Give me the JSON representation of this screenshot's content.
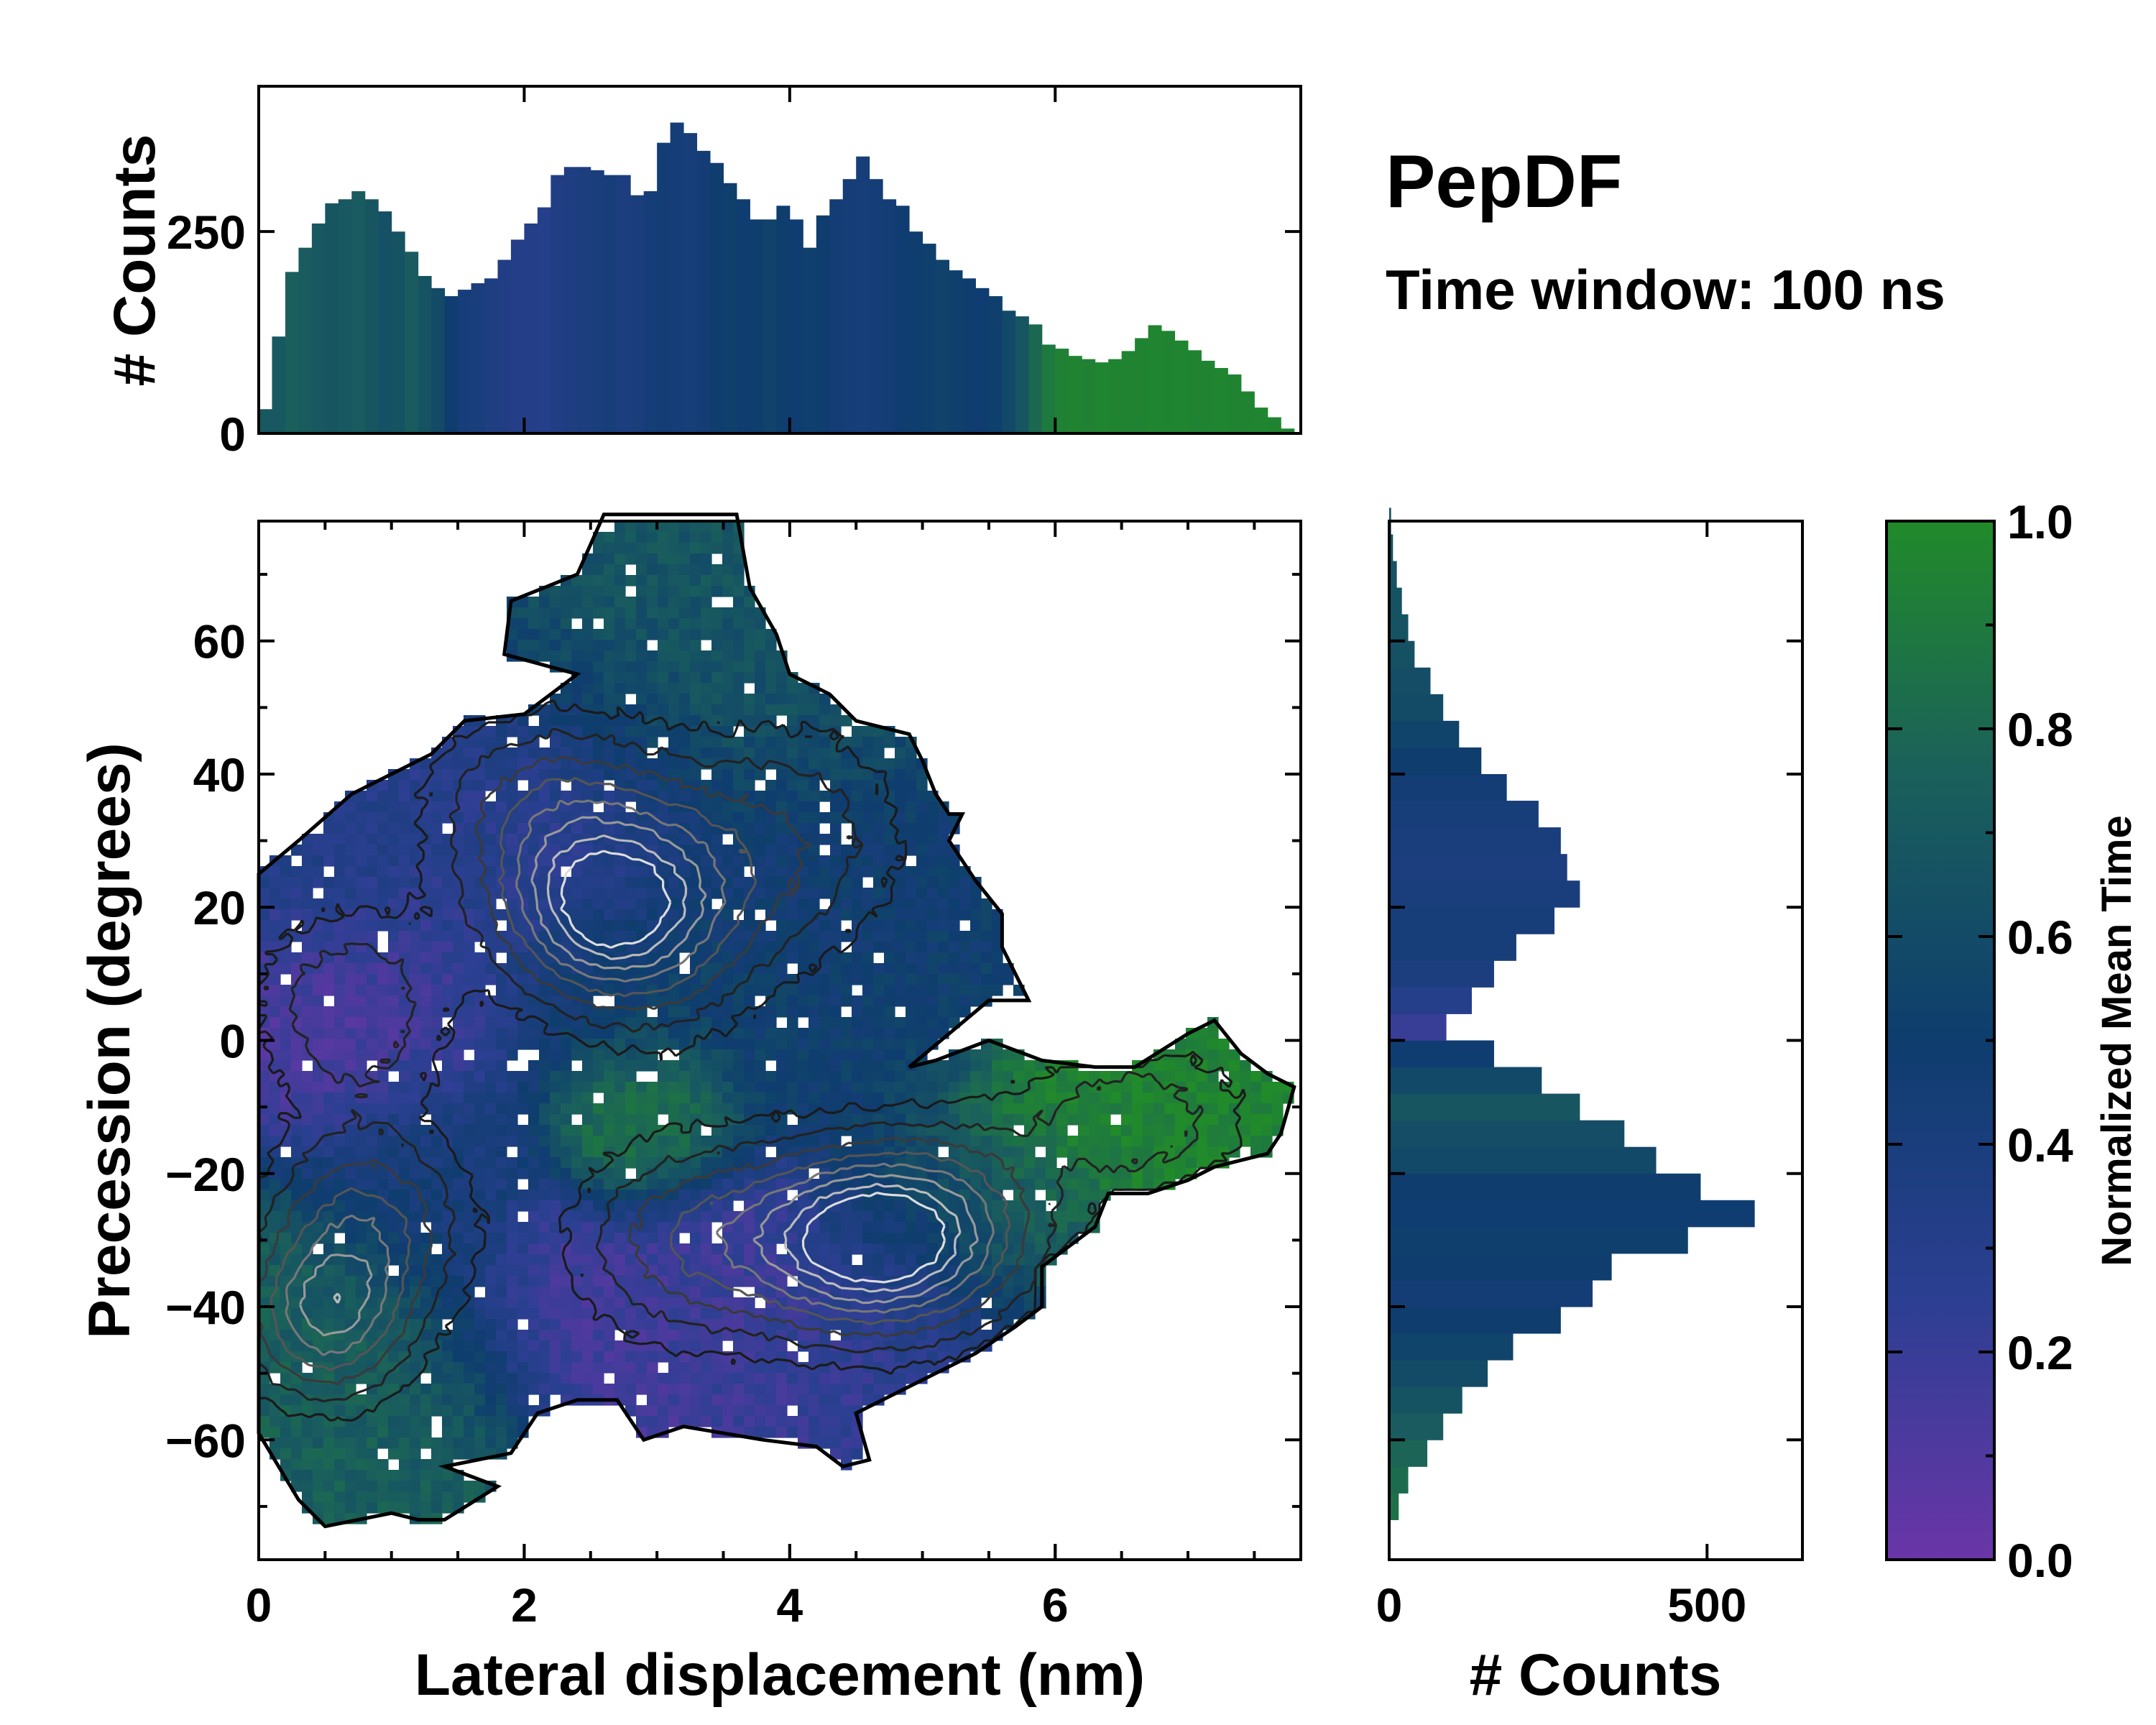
{
  "title": "PepDF",
  "subtitle": "Time window: 100 ns",
  "colors": {
    "purple": "#6a35a8",
    "mid_blue": "#1f3a85",
    "navy": "#0e3d6e",
    "teal": "#1a5f5c",
    "green": "#218a2a"
  },
  "chart_data": [
    {
      "id": "top-histogram",
      "type": "bar",
      "ylabel": "# Counts",
      "xlim": [
        0,
        7.85
      ],
      "ylim": [
        0,
        430
      ],
      "yticks": [
        0,
        250
      ],
      "bins_x": [
        0.0,
        0.1,
        0.2,
        0.3,
        0.4,
        0.5,
        0.6,
        0.7,
        0.8,
        0.9,
        1.0,
        1.1,
        1.2,
        1.3,
        1.4,
        1.5,
        1.6,
        1.7,
        1.8,
        1.9,
        2.0,
        2.1,
        2.2,
        2.3,
        2.4,
        2.5,
        2.6,
        2.7,
        2.8,
        2.9,
        3.0,
        3.1,
        3.2,
        3.3,
        3.4,
        3.5,
        3.6,
        3.7,
        3.8,
        3.9,
        4.0,
        4.1,
        4.2,
        4.3,
        4.4,
        4.5,
        4.6,
        4.7,
        4.8,
        4.9,
        5.0,
        5.1,
        5.2,
        5.3,
        5.4,
        5.5,
        5.6,
        5.7,
        5.8,
        5.9,
        6.0,
        6.1,
        6.2,
        6.3,
        6.4,
        6.5,
        6.6,
        6.7,
        6.8,
        6.9,
        7.0,
        7.1,
        7.2,
        7.3,
        7.4,
        7.5,
        7.6,
        7.7
      ],
      "counts": [
        30,
        120,
        200,
        230,
        260,
        285,
        290,
        300,
        290,
        275,
        250,
        225,
        195,
        180,
        170,
        178,
        186,
        192,
        215,
        240,
        260,
        280,
        320,
        330,
        330,
        326,
        320,
        320,
        295,
        300,
        360,
        385,
        372,
        350,
        335,
        310,
        290,
        265,
        265,
        282,
        265,
        230,
        270,
        290,
        315,
        343,
        315,
        290,
        282,
        250,
        235,
        215,
        202,
        192,
        180,
        170,
        152,
        145,
        135,
        110,
        105,
        96,
        92,
        88,
        92,
        102,
        118,
        134,
        127,
        115,
        103,
        90,
        81,
        73,
        52,
        32,
        20,
        6
      ],
      "colors": [
        0.7,
        0.7,
        0.75,
        0.72,
        0.7,
        0.68,
        0.7,
        0.72,
        0.68,
        0.64,
        0.66,
        0.72,
        0.66,
        0.6,
        0.48,
        0.42,
        0.4,
        0.36,
        0.34,
        0.32,
        0.32,
        0.3,
        0.34,
        0.36,
        0.38,
        0.4,
        0.42,
        0.38,
        0.4,
        0.44,
        0.46,
        0.44,
        0.42,
        0.46,
        0.5,
        0.52,
        0.48,
        0.5,
        0.54,
        0.5,
        0.48,
        0.52,
        0.5,
        0.46,
        0.44,
        0.42,
        0.44,
        0.46,
        0.48,
        0.5,
        0.52,
        0.54,
        0.52,
        0.5,
        0.48,
        0.52,
        0.58,
        0.68,
        0.8,
        0.9,
        0.95,
        0.96,
        0.95,
        0.97,
        0.96,
        0.96,
        0.96,
        0.97,
        0.96,
        0.97,
        0.96,
        0.96,
        0.97,
        0.96,
        0.96,
        0.97,
        0.96,
        0.96
      ]
    },
    {
      "id": "side-histogram",
      "type": "bar",
      "orientation": "horizontal",
      "xlabel": "# Counts",
      "xlim": [
        0,
        650
      ],
      "xticks": [
        0,
        500
      ],
      "bins_y": [
        -72,
        -68,
        -64,
        -60,
        -56,
        -52,
        -48,
        -44,
        -40,
        -36,
        -32,
        -28,
        -24,
        -20,
        -16,
        -12,
        -8,
        -4,
        0,
        4,
        8,
        12,
        16,
        20,
        24,
        28,
        32,
        36,
        40,
        44,
        48,
        52,
        56,
        60,
        64,
        68,
        72,
        76
      ],
      "counts": [
        15,
        30,
        60,
        85,
        115,
        155,
        195,
        270,
        320,
        350,
        470,
        575,
        490,
        420,
        370,
        300,
        240,
        165,
        90,
        130,
        165,
        200,
        260,
        300,
        280,
        270,
        235,
        185,
        145,
        110,
        85,
        65,
        40,
        30,
        20,
        12,
        6,
        3
      ],
      "colors": [
        0.85,
        0.82,
        0.78,
        0.72,
        0.66,
        0.6,
        0.55,
        0.5,
        0.45,
        0.5,
        0.52,
        0.48,
        0.5,
        0.58,
        0.62,
        0.68,
        0.58,
        0.48,
        0.2,
        0.3,
        0.38,
        0.42,
        0.42,
        0.4,
        0.38,
        0.4,
        0.42,
        0.46,
        0.5,
        0.55,
        0.6,
        0.62,
        0.65,
        0.66,
        0.66,
        0.66,
        0.66,
        0.66
      ]
    },
    {
      "id": "main-heatmap",
      "type": "heatmap",
      "xlabel": "Lateral displacement (nm)",
      "ylabel": "Precession (degrees)",
      "xlim": [
        0,
        7.85
      ],
      "ylim": [
        -78,
        78
      ],
      "xticks": [
        0,
        2,
        4,
        6
      ],
      "yticks": [
        -60,
        -40,
        -20,
        0,
        20,
        40,
        60
      ],
      "boundary": [
        [
          0,
          25
        ],
        [
          0.3,
          30
        ],
        [
          0.7,
          37
        ],
        [
          1.0,
          40
        ],
        [
          1.3,
          43
        ],
        [
          1.55,
          48
        ],
        [
          2.0,
          49
        ],
        [
          2.4,
          55
        ],
        [
          1.85,
          58
        ],
        [
          1.9,
          66
        ],
        [
          2.4,
          70
        ],
        [
          2.6,
          79
        ],
        [
          3.6,
          79
        ],
        [
          3.7,
          68
        ],
        [
          3.9,
          61
        ],
        [
          4.0,
          55
        ],
        [
          4.3,
          52
        ],
        [
          4.5,
          48
        ],
        [
          4.9,
          46
        ],
        [
          5.0,
          42
        ],
        [
          5.1,
          37
        ],
        [
          5.2,
          34
        ],
        [
          5.3,
          34
        ],
        [
          5.2,
          30
        ],
        [
          5.4,
          24
        ],
        [
          5.6,
          19
        ],
        [
          5.6,
          14
        ],
        [
          5.8,
          6
        ],
        [
          5.5,
          6
        ],
        [
          5.2,
          1
        ],
        [
          4.9,
          -4
        ],
        [
          5.1,
          -3
        ],
        [
          5.5,
          0
        ],
        [
          5.9,
          -3
        ],
        [
          6.3,
          -4
        ],
        [
          6.6,
          -4
        ],
        [
          7.0,
          1
        ],
        [
          7.2,
          3
        ],
        [
          7.4,
          -2
        ],
        [
          7.6,
          -5
        ],
        [
          7.8,
          -7
        ],
        [
          7.7,
          -14
        ],
        [
          7.6,
          -17
        ],
        [
          7.2,
          -19
        ],
        [
          7.0,
          -21
        ],
        [
          6.7,
          -23
        ],
        [
          6.4,
          -23
        ],
        [
          6.3,
          -28
        ],
        [
          5.9,
          -34
        ],
        [
          5.9,
          -40
        ],
        [
          5.7,
          -43
        ],
        [
          5.4,
          -47
        ],
        [
          5.0,
          -51
        ],
        [
          4.5,
          -56
        ],
        [
          4.6,
          -63
        ],
        [
          4.4,
          -64
        ],
        [
          4.2,
          -61
        ],
        [
          3.8,
          -60
        ],
        [
          3.2,
          -58
        ],
        [
          2.9,
          -60
        ],
        [
          2.7,
          -54
        ],
        [
          2.4,
          -54
        ],
        [
          2.1,
          -56
        ],
        [
          1.9,
          -62
        ],
        [
          1.4,
          -64
        ],
        [
          1.8,
          -67
        ],
        [
          1.4,
          -72
        ],
        [
          1.2,
          -72
        ],
        [
          1.0,
          -71
        ],
        [
          0.5,
          -73
        ],
        [
          0.3,
          -69
        ],
        [
          0,
          -59
        ]
      ],
      "regions": [
        {
          "center": [
            0.55,
            5
          ],
          "radius": [
            0.6,
            16
          ],
          "value": 0.12
        },
        {
          "center": [
            1.2,
            8
          ],
          "radius": [
            0.5,
            12
          ],
          "value": 0.14
        },
        {
          "center": [
            0.5,
            -50
          ],
          "radius": [
            0.6,
            20
          ],
          "value": 0.74
        },
        {
          "center": [
            1.3,
            -52
          ],
          "radius": [
            0.6,
            16
          ],
          "value": 0.72
        },
        {
          "center": [
            1.2,
            -22
          ],
          "radius": [
            0.6,
            14
          ],
          "value": 0.42
        },
        {
          "center": [
            2.2,
            -42
          ],
          "radius": [
            0.7,
            12
          ],
          "value": 0.16
        },
        {
          "center": [
            3.6,
            -33
          ],
          "radius": [
            0.7,
            12
          ],
          "value": 0.18
        },
        {
          "center": [
            4.6,
            -42
          ],
          "radius": [
            0.8,
            10
          ],
          "value": 0.2
        },
        {
          "center": [
            3.0,
            -12
          ],
          "radius": [
            0.5,
            10
          ],
          "value": 0.86
        },
        {
          "center": [
            6.6,
            -12
          ],
          "radius": [
            1.1,
            12
          ],
          "value": 0.96
        },
        {
          "center": [
            4.3,
            0
          ],
          "radius": [
            0.7,
            12
          ],
          "value": 0.5
        },
        {
          "center": [
            2.9,
            10
          ],
          "radius": [
            0.9,
            12
          ],
          "value": 0.58
        },
        {
          "center": [
            2.4,
            30
          ],
          "radius": [
            0.8,
            20
          ],
          "value": 0.24
        },
        {
          "center": [
            3.9,
            25
          ],
          "radius": [
            0.9,
            22
          ],
          "value": 0.46
        },
        {
          "center": [
            3.2,
            55
          ],
          "radius": [
            1.0,
            18
          ],
          "value": 0.68
        },
        {
          "center": [
            4.0,
            52
          ],
          "radius": [
            0.8,
            14
          ],
          "value": 0.66
        },
        {
          "center": [
            0.6,
            22
          ],
          "radius": [
            0.6,
            10
          ],
          "value": 0.36
        },
        {
          "center": [
            1.6,
            22
          ],
          "radius": [
            0.6,
            14
          ],
          "value": 0.3
        },
        {
          "center": [
            5.1,
            -30
          ],
          "radius": [
            0.8,
            14
          ],
          "value": 0.52
        },
        {
          "center": [
            5.8,
            -28
          ],
          "radius": [
            0.5,
            10
          ],
          "value": 0.78
        },
        {
          "center": [
            4.9,
            15
          ],
          "radius": [
            0.6,
            14
          ],
          "value": 0.5
        }
      ],
      "density_peaks": [
        {
          "center": [
            4.55,
            -30
          ],
          "radius": [
            0.55,
            9
          ],
          "weight": 1.0
        },
        {
          "center": [
            2.55,
            19
          ],
          "radius": [
            0.5,
            9
          ],
          "weight": 0.75
        },
        {
          "center": [
            0.8,
            -28
          ],
          "radius": [
            0.5,
            10
          ],
          "weight": 0.5
        },
        {
          "center": [
            0.5,
            -42
          ],
          "radius": [
            0.4,
            8
          ],
          "weight": 0.62
        },
        {
          "center": [
            2.2,
            34
          ],
          "radius": [
            0.6,
            10
          ],
          "weight": 0.42
        },
        {
          "center": [
            3.3,
            -30
          ],
          "radius": [
            0.6,
            10
          ],
          "weight": 0.45
        },
        {
          "center": [
            6.6,
            -12
          ],
          "radius": [
            0.6,
            8
          ],
          "weight": 0.3
        },
        {
          "center": [
            0.7,
            5
          ],
          "radius": [
            0.5,
            10
          ],
          "weight": 0.32
        },
        {
          "center": [
            3.1,
            20
          ],
          "radius": [
            0.5,
            12
          ],
          "weight": 0.38
        },
        {
          "center": [
            4.0,
            30
          ],
          "radius": [
            0.6,
            12
          ],
          "weight": 0.3
        },
        {
          "center": [
            5.3,
            -28
          ],
          "radius": [
            0.5,
            10
          ],
          "weight": 0.4
        }
      ]
    },
    {
      "id": "colorbar",
      "type": "colorbar",
      "label": "Normalized Mean Time",
      "range": [
        0.0,
        1.0
      ],
      "ticks": [
        "0.0",
        "0.2",
        "0.4",
        "0.6",
        "0.8",
        "1.0"
      ],
      "stops": [
        [
          0.0,
          "#6a35a8"
        ],
        [
          0.25,
          "#2c3f92"
        ],
        [
          0.5,
          "#0e3d6e"
        ],
        [
          0.75,
          "#1a5f5c"
        ],
        [
          1.0,
          "#218a2a"
        ]
      ]
    }
  ]
}
